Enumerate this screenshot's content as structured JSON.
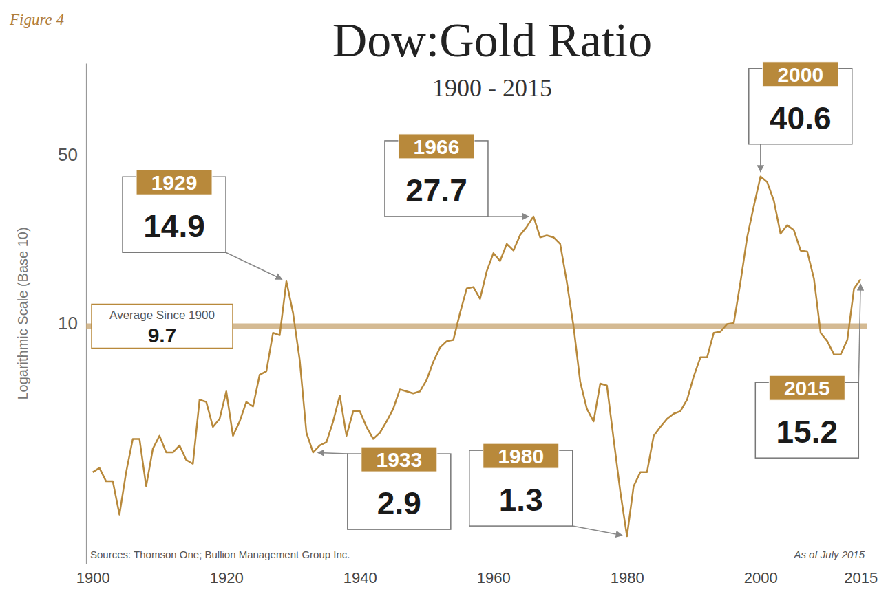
{
  "chart_data": {
    "type": "line",
    "figure_label": "Figure 4",
    "title": "Dow:Gold Ratio",
    "subtitle": "1900 - 2015",
    "y_label": "Logarithmic Scale (Base 10)",
    "source": "Sources: Thomson One; Bullion Management Group Inc.",
    "note": "As of July 2015",
    "color": "#b8893b",
    "log": "y",
    "grid": false,
    "xlim": [
      1899,
      2016
    ],
    "ylim": [
      1,
      120
    ],
    "xticks": [
      1900,
      1920,
      1940,
      1960,
      1980,
      2000,
      2015
    ],
    "yticks": [
      10,
      50
    ],
    "x": [
      1900,
      1901,
      1902,
      1903,
      1904,
      1905,
      1906,
      1907,
      1908,
      1909,
      1910,
      1911,
      1912,
      1913,
      1914,
      1915,
      1916,
      1917,
      1918,
      1919,
      1920,
      1921,
      1922,
      1923,
      1924,
      1925,
      1926,
      1927,
      1928,
      1929,
      1930,
      1931,
      1932,
      1933,
      1934,
      1935,
      1936,
      1937,
      1938,
      1939,
      1940,
      1941,
      1942,
      1943,
      1944,
      1945,
      1946,
      1947,
      1948,
      1949,
      1950,
      1951,
      1952,
      1953,
      1954,
      1955,
      1956,
      1957,
      1958,
      1959,
      1960,
      1961,
      1962,
      1963,
      1964,
      1965,
      1966,
      1967,
      1968,
      1969,
      1970,
      1971,
      1972,
      1973,
      1974,
      1975,
      1976,
      1977,
      1978,
      1979,
      1980,
      1981,
      1982,
      1983,
      1984,
      1985,
      1986,
      1987,
      1988,
      1989,
      1990,
      1991,
      1992,
      1993,
      1994,
      1995,
      1996,
      1997,
      1998,
      1999,
      2000,
      2001,
      2002,
      2003,
      2004,
      2005,
      2006,
      2007,
      2008,
      2009,
      2010,
      2011,
      2012,
      2013,
      2014,
      2015
    ],
    "values": [
      2.4,
      2.5,
      2.2,
      2.2,
      1.6,
      2.4,
      3.3,
      3.3,
      2.1,
      3.0,
      3.4,
      2.9,
      2.9,
      3.1,
      2.7,
      2.6,
      4.8,
      4.7,
      3.7,
      4.0,
      5.2,
      3.4,
      3.9,
      4.7,
      4.5,
      6.1,
      6.3,
      9.1,
      8.9,
      14.9,
      11.0,
      7.0,
      3.5,
      2.9,
      3.1,
      3.2,
      3.9,
      5.0,
      3.4,
      4.3,
      4.3,
      3.7,
      3.3,
      3.5,
      3.9,
      4.4,
      5.3,
      5.2,
      5.1,
      5.2,
      5.8,
      6.9,
      7.9,
      8.4,
      8.5,
      11.0,
      13.9,
      14.1,
      12.6,
      16.4,
      19.5,
      18.1,
      21.3,
      20.0,
      23.2,
      25.1,
      27.7,
      22.7,
      23.1,
      22.7,
      21.3,
      14.8,
      9.7,
      5.7,
      4.4,
      3.9,
      5.6,
      5.5,
      3.3,
      2.0,
      1.3,
      2.1,
      2.4,
      2.4,
      3.4,
      3.7,
      4.0,
      4.2,
      4.3,
      4.8,
      6.0,
      7.2,
      7.2,
      9.1,
      9.2,
      9.9,
      10.0,
      14.8,
      22.7,
      30.6,
      40.6,
      38.5,
      32.2,
      23.5,
      25.5,
      24.3,
      20.0,
      19.8,
      15.3,
      9.1,
      8.4,
      7.4,
      7.4,
      8.5,
      13.9,
      15.2
    ],
    "average": {
      "label": "Average Since 1900",
      "value": 9.7
    },
    "annotations": [
      {
        "x": 1929,
        "y": 14.9
      },
      {
        "x": 1933,
        "y": 2.9
      },
      {
        "x": 1966,
        "y": 27.7
      },
      {
        "x": 1980,
        "y": 1.3
      },
      {
        "x": 2000,
        "y": 40.6
      },
      {
        "x": 2015,
        "y": 15.2
      }
    ]
  }
}
